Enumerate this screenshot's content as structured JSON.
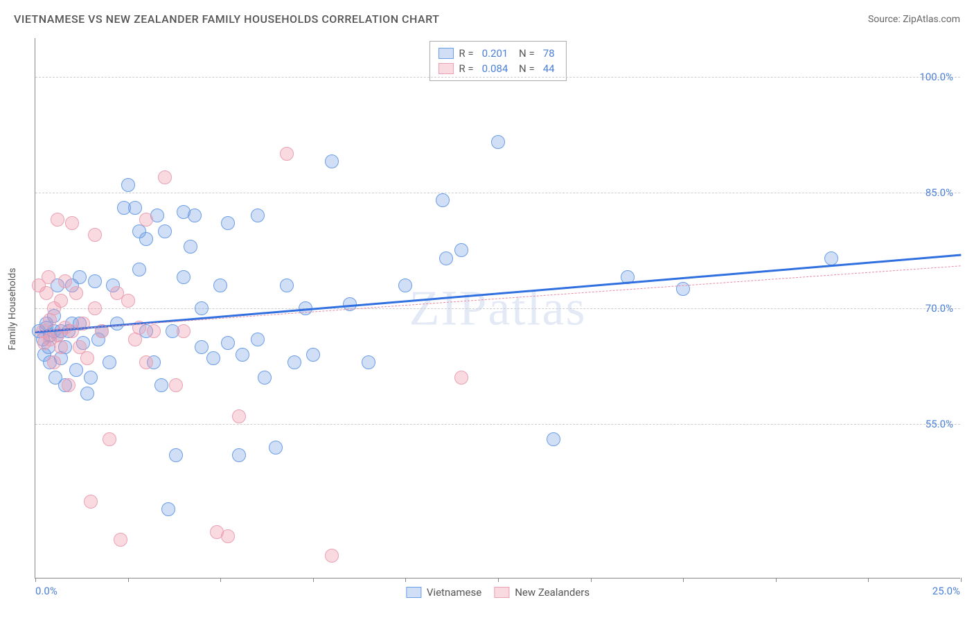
{
  "header": {
    "title": "VIETNAMESE VS NEW ZEALANDER FAMILY HOUSEHOLDS CORRELATION CHART",
    "source_prefix": "Source: ",
    "source": "ZipAtlas.com"
  },
  "watermark": "ZIPatlas",
  "chart": {
    "type": "scatter",
    "y_axis_label": "Family Households",
    "background_color": "#ffffff",
    "grid_color": "#cccccc",
    "axis_color": "#888888",
    "tick_label_color": "#4a7fd8",
    "xlim": [
      0,
      25
    ],
    "ylim": [
      35,
      105
    ],
    "y_ticks": [
      {
        "value": 55.0,
        "label": "55.0%"
      },
      {
        "value": 70.0,
        "label": "70.0%"
      },
      {
        "value": 85.0,
        "label": "85.0%"
      },
      {
        "value": 100.0,
        "label": "100.0%"
      }
    ],
    "x_ticks": [
      0,
      2.5,
      5,
      7.5,
      10,
      12.5,
      15,
      17.5,
      20,
      22.5,
      25
    ],
    "x_tick_labels": {
      "start": "0.0%",
      "end": "25.0%"
    },
    "marker_radius": 10,
    "marker_stroke_width": 1,
    "series": [
      {
        "name": "Vietnamese",
        "fill_color": "rgba(120,160,230,0.35)",
        "stroke_color": "#6a9de8",
        "legend": {
          "R": "0.201",
          "N": "78"
        },
        "trend": {
          "x1": 0,
          "y1": 67,
          "x2": 25,
          "y2": 77,
          "color": "#2f6fe0",
          "width": 2.5,
          "dash": "solid"
        },
        "points": [
          [
            0.1,
            67
          ],
          [
            0.2,
            66
          ],
          [
            0.25,
            64
          ],
          [
            0.3,
            68
          ],
          [
            0.3,
            67.5
          ],
          [
            0.35,
            65
          ],
          [
            0.4,
            66.5
          ],
          [
            0.4,
            63
          ],
          [
            0.5,
            67
          ],
          [
            0.5,
            69
          ],
          [
            0.55,
            61
          ],
          [
            0.6,
            73
          ],
          [
            0.6,
            66.5
          ],
          [
            0.7,
            67
          ],
          [
            0.7,
            63.5
          ],
          [
            0.8,
            60
          ],
          [
            0.8,
            65
          ],
          [
            0.9,
            67
          ],
          [
            1.0,
            73
          ],
          [
            1.0,
            68
          ],
          [
            1.1,
            62
          ],
          [
            1.2,
            68
          ],
          [
            1.2,
            74
          ],
          [
            1.3,
            65.5
          ],
          [
            1.4,
            59
          ],
          [
            1.5,
            61
          ],
          [
            1.6,
            73.5
          ],
          [
            1.7,
            66
          ],
          [
            1.8,
            67
          ],
          [
            2.0,
            63
          ],
          [
            2.1,
            73
          ],
          [
            2.2,
            68
          ],
          [
            2.4,
            83
          ],
          [
            2.5,
            86
          ],
          [
            2.7,
            83
          ],
          [
            2.8,
            80
          ],
          [
            2.8,
            75
          ],
          [
            3.0,
            67
          ],
          [
            3.0,
            79
          ],
          [
            3.2,
            63
          ],
          [
            3.3,
            82
          ],
          [
            3.4,
            60
          ],
          [
            3.5,
            80
          ],
          [
            3.6,
            44
          ],
          [
            3.7,
            67
          ],
          [
            3.8,
            51
          ],
          [
            4.0,
            82.5
          ],
          [
            4.0,
            74
          ],
          [
            4.2,
            78
          ],
          [
            4.3,
            82
          ],
          [
            4.5,
            65
          ],
          [
            4.5,
            70
          ],
          [
            4.8,
            63.5
          ],
          [
            5.0,
            73
          ],
          [
            5.2,
            81
          ],
          [
            5.2,
            65.5
          ],
          [
            5.5,
            51
          ],
          [
            5.6,
            64
          ],
          [
            6.0,
            82
          ],
          [
            6.0,
            66
          ],
          [
            6.2,
            61
          ],
          [
            6.5,
            52
          ],
          [
            6.8,
            73
          ],
          [
            7.0,
            63
          ],
          [
            7.3,
            70
          ],
          [
            7.5,
            64
          ],
          [
            8.0,
            89
          ],
          [
            8.5,
            70.5
          ],
          [
            9.0,
            63
          ],
          [
            10.0,
            73
          ],
          [
            11.0,
            84
          ],
          [
            11.1,
            76.5
          ],
          [
            11.5,
            77.5
          ],
          [
            12.5,
            91.5
          ],
          [
            14.0,
            53
          ],
          [
            16.0,
            74
          ],
          [
            17.5,
            72.5
          ],
          [
            21.5,
            76.5
          ]
        ]
      },
      {
        "name": "New Zealanders",
        "fill_color": "rgba(240,150,170,0.35)",
        "stroke_color": "#eaa0b2",
        "legend": {
          "R": "0.084",
          "N": "44"
        },
        "trend": {
          "x1": 0,
          "y1": 67,
          "x2": 25,
          "y2": 75.5,
          "color": "#e88aa0",
          "width": 1.5,
          "dash": "dashed"
        },
        "points": [
          [
            0.1,
            73
          ],
          [
            0.2,
            67
          ],
          [
            0.25,
            65.5
          ],
          [
            0.3,
            72
          ],
          [
            0.35,
            74
          ],
          [
            0.4,
            66
          ],
          [
            0.4,
            68.5
          ],
          [
            0.5,
            63
          ],
          [
            0.5,
            70
          ],
          [
            0.6,
            81.5
          ],
          [
            0.6,
            66.5
          ],
          [
            0.7,
            71
          ],
          [
            0.7,
            65
          ],
          [
            0.8,
            73.5
          ],
          [
            0.8,
            67.5
          ],
          [
            0.9,
            60
          ],
          [
            1.0,
            81
          ],
          [
            1.0,
            67
          ],
          [
            1.1,
            72
          ],
          [
            1.2,
            65
          ],
          [
            1.3,
            68
          ],
          [
            1.4,
            63.5
          ],
          [
            1.5,
            45
          ],
          [
            1.6,
            70
          ],
          [
            1.6,
            79.5
          ],
          [
            1.8,
            67
          ],
          [
            2.0,
            53
          ],
          [
            2.2,
            72
          ],
          [
            2.3,
            40
          ],
          [
            2.5,
            71
          ],
          [
            2.7,
            66
          ],
          [
            2.8,
            67.5
          ],
          [
            3.0,
            81.5
          ],
          [
            3.0,
            63
          ],
          [
            3.2,
            67
          ],
          [
            3.5,
            87
          ],
          [
            3.8,
            60
          ],
          [
            4.0,
            67
          ],
          [
            4.9,
            41
          ],
          [
            5.2,
            40.5
          ],
          [
            5.5,
            56
          ],
          [
            6.8,
            90
          ],
          [
            8.0,
            38
          ],
          [
            11.5,
            61
          ]
        ]
      }
    ]
  }
}
